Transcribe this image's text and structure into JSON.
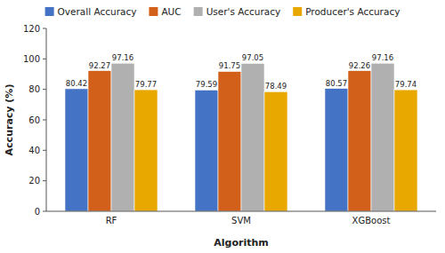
{
  "chart_data": {
    "type": "bar",
    "xlabel": "Algorithm",
    "ylabel": "Accuracy (%)",
    "categories": [
      "RF",
      "SVM",
      "XGBoost"
    ],
    "series": [
      {
        "name": "Overall Accuracy",
        "color": "#4472C4",
        "values": [
          80.42,
          79.59,
          80.57
        ]
      },
      {
        "name": "AUC",
        "color": "#D2601A",
        "values": [
          92.27,
          91.75,
          92.26
        ]
      },
      {
        "name": "User's Accuracy",
        "color": "#B0B0B0",
        "values": [
          97.16,
          97.05,
          97.16
        ]
      },
      {
        "name": "Producer's Accuracy",
        "color": "#E8A800",
        "values": [
          79.77,
          78.49,
          79.74
        ]
      }
    ],
    "ylim": [
      0,
      120
    ],
    "yticks": [
      0,
      20,
      40,
      60,
      80,
      100,
      120
    ],
    "grid": false,
    "legend": "upper center",
    "data_labels": true
  }
}
